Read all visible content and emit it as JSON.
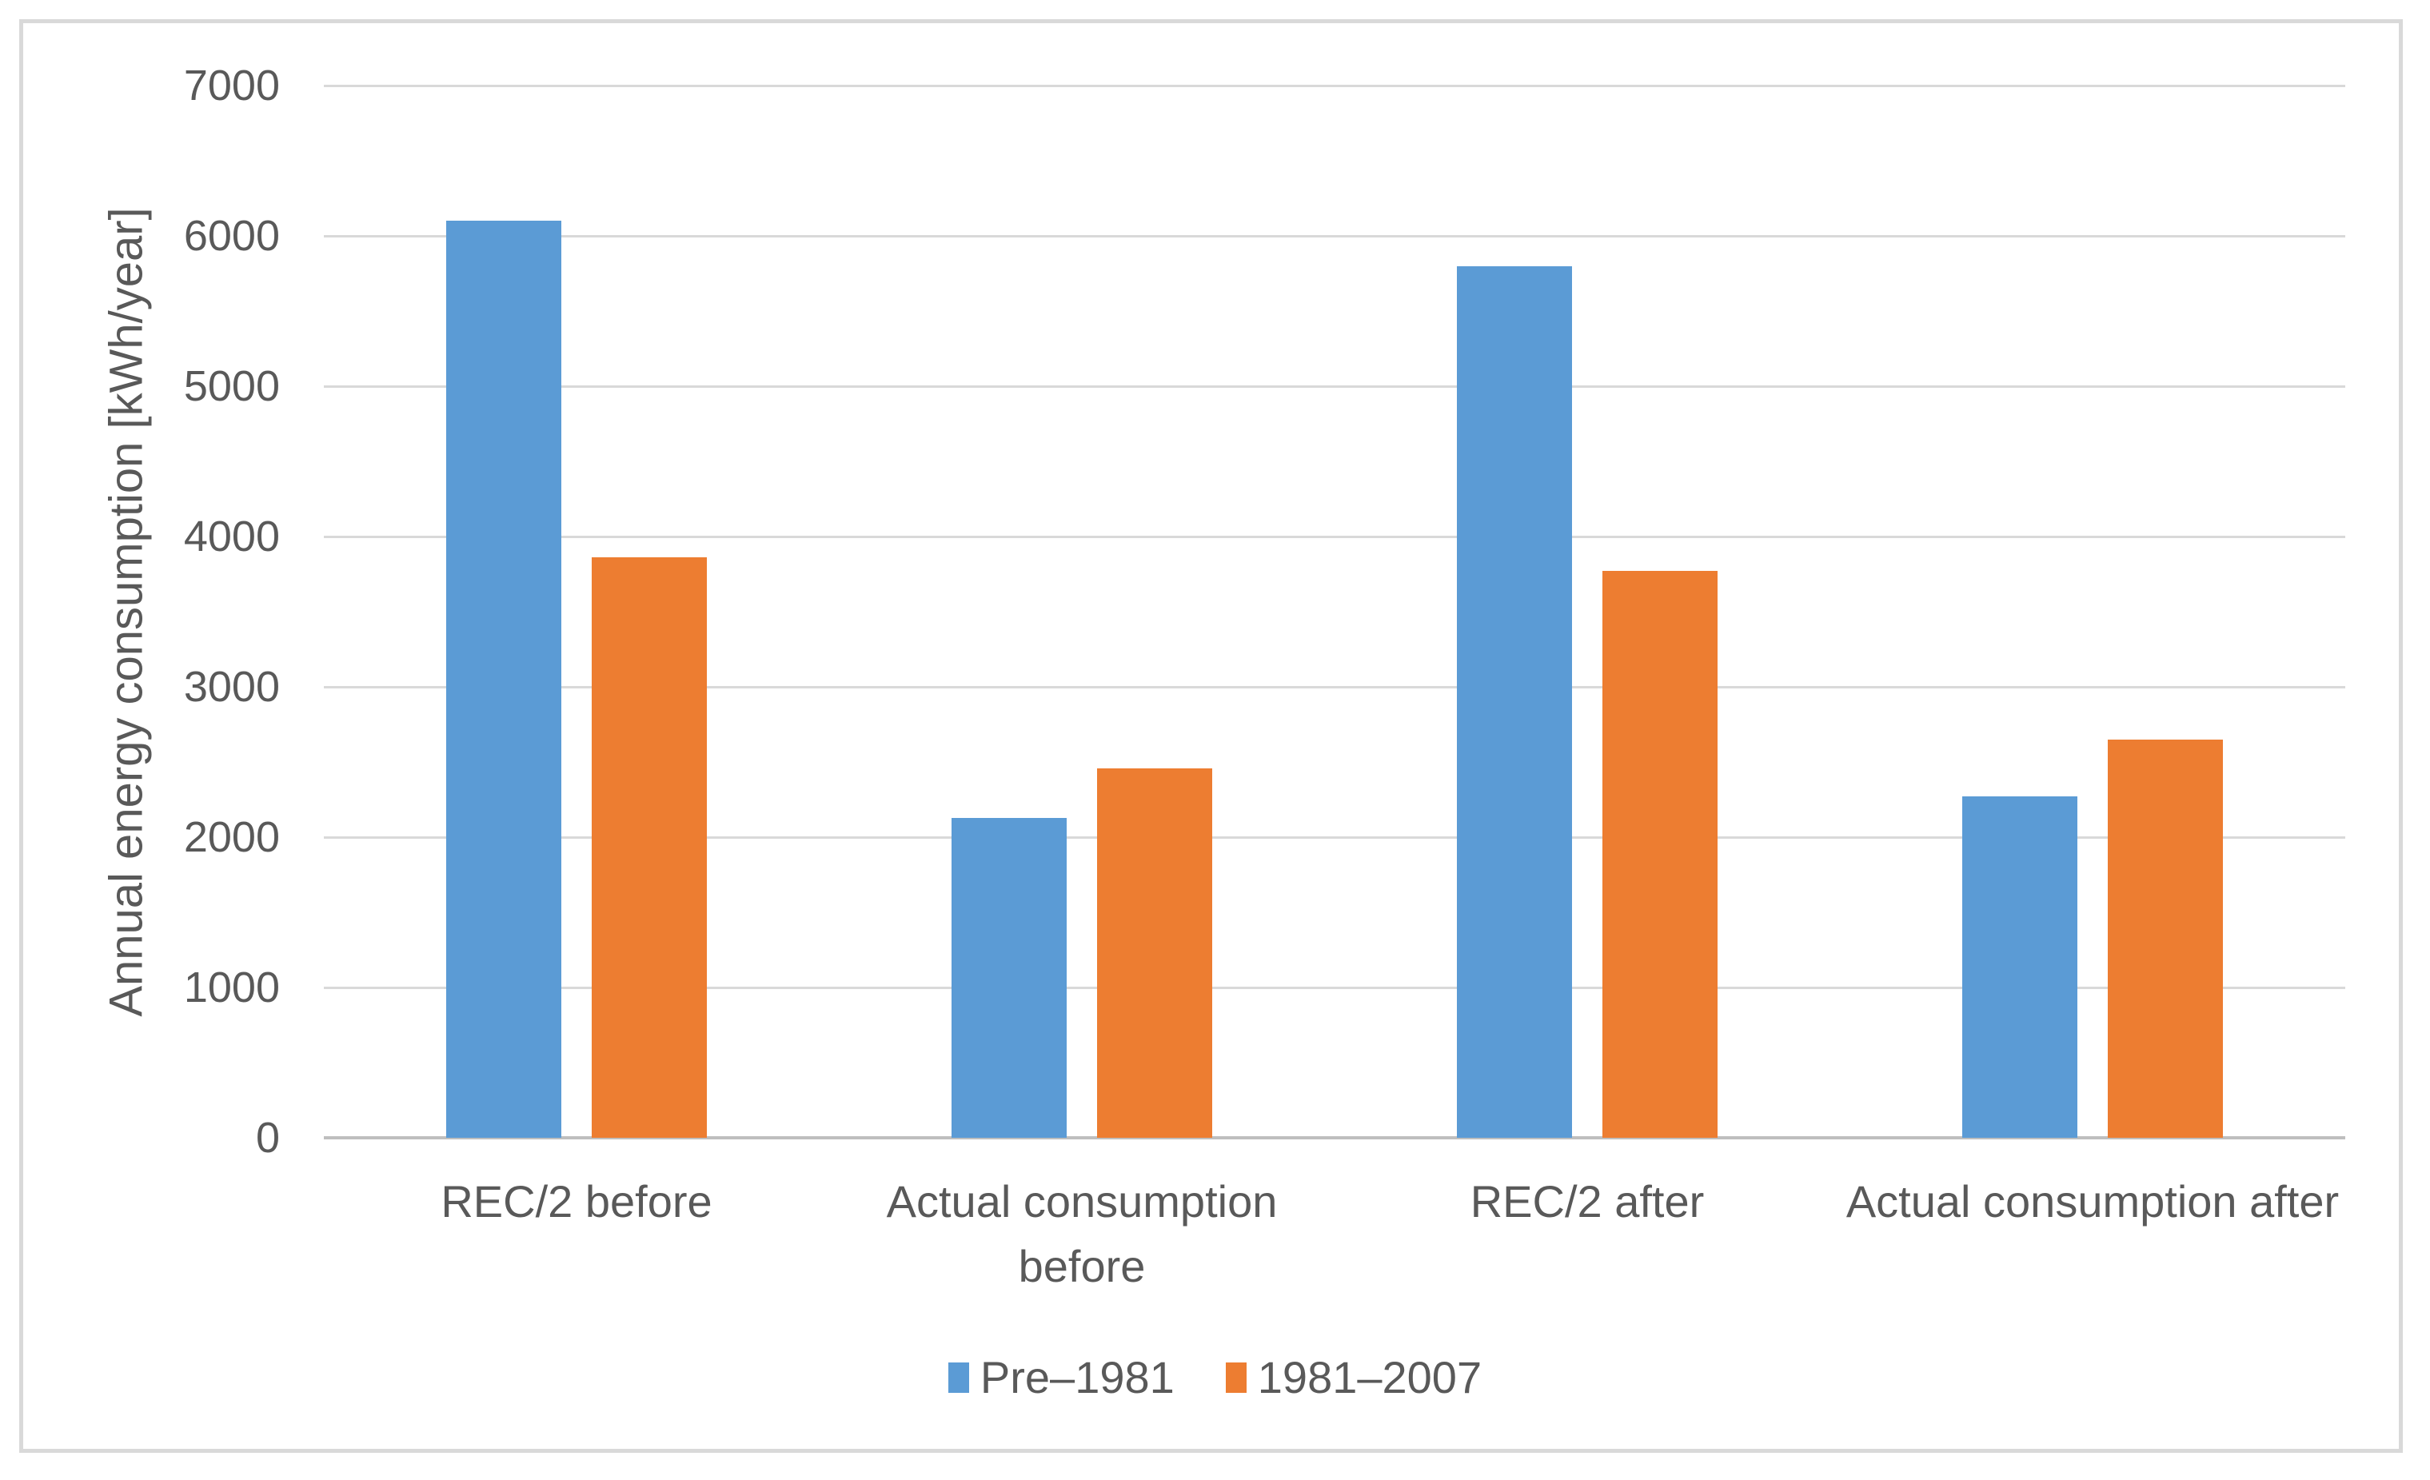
{
  "chart_data": {
    "type": "bar",
    "title": "",
    "xlabel": "",
    "ylabel": "Annual energy consumption [kWh/year]",
    "categories": [
      "REC/2 before",
      "Actual consumption before",
      "REC/2 after",
      "Actual consumption after"
    ],
    "series": [
      {
        "name": "Pre–1981",
        "color": "#5B9BD5",
        "values": [
          6100,
          2130,
          5800,
          2270
        ]
      },
      {
        "name": "1981–2007",
        "color": "#ED7D31",
        "values": [
          3860,
          2460,
          3770,
          2650
        ]
      }
    ],
    "ylim": [
      0,
      7000
    ],
    "ytick_interval": 1000,
    "yticks": [
      "0",
      "1000",
      "2000",
      "3000",
      "4000",
      "5000",
      "6000",
      "7000"
    ],
    "grid": "horizontal",
    "legend_position": "bottom",
    "colors": {
      "gridline": "#D9D9D9",
      "axis_line": "#BFBFBF",
      "text": "#595959",
      "frame_border": "#D9D9D9",
      "background": "#FFFFFF"
    }
  }
}
